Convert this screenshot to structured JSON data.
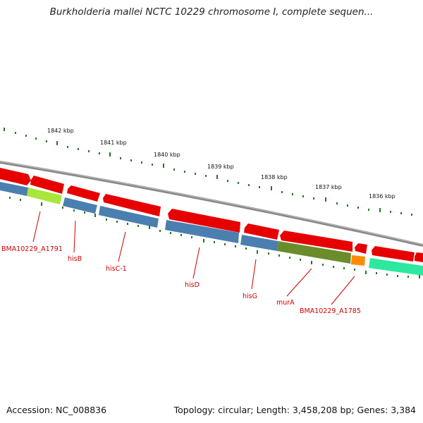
{
  "title": "Burkholderia mallei NCTC 10229 chromosome I, complete sequen...",
  "footer": {
    "accession": "Accession: NC_008836",
    "summary": "Topology: circular; Length: 3,458,208 bp; Genes: 3,384"
  },
  "scale_labels": [
    "1842 kbp",
    "1841 kbp",
    "1840 kbp",
    "1839 kbp",
    "1838 kbp",
    "1837 kbp",
    "1836 kbp"
  ],
  "gene_labels": [
    "BMA10229_A1791",
    "hisB",
    "hisC-1",
    "hisD",
    "hisG",
    "murA",
    "BMA10229_A1785"
  ],
  "colors": {
    "forward_gene": "#e60000",
    "reverse_gene": "#4a7fb0",
    "backbone": "#8a8a8a",
    "tick": "#1f7a1f",
    "label": "#cc0000",
    "lime": "#a8e63a",
    "olive": "#6b8c2a",
    "orange": "#ff8c00",
    "teal": "#2ee8a0"
  }
}
